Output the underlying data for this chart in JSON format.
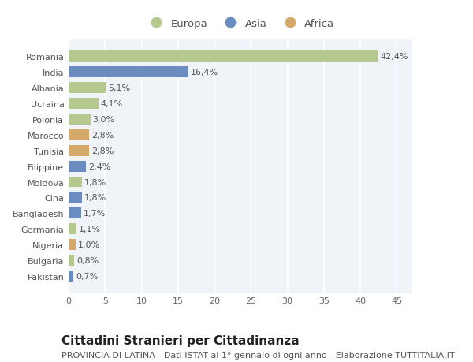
{
  "categories": [
    "Pakistan",
    "Bulgaria",
    "Nigeria",
    "Germania",
    "Bangladesh",
    "Cina",
    "Moldova",
    "Filippine",
    "Tunisia",
    "Marocco",
    "Polonia",
    "Ucraina",
    "Albania",
    "India",
    "Romania"
  ],
  "values": [
    0.7,
    0.8,
    1.0,
    1.1,
    1.7,
    1.8,
    1.8,
    2.4,
    2.8,
    2.8,
    3.0,
    4.1,
    5.1,
    16.4,
    42.4
  ],
  "labels": [
    "0,7%",
    "0,8%",
    "1,0%",
    "1,1%",
    "1,7%",
    "1,8%",
    "1,8%",
    "2,4%",
    "2,8%",
    "2,8%",
    "3,0%",
    "4,1%",
    "5,1%",
    "16,4%",
    "42,4%"
  ],
  "continents": [
    "Asia",
    "Europa",
    "Africa",
    "Europa",
    "Asia",
    "Asia",
    "Europa",
    "Asia",
    "Africa",
    "Africa",
    "Europa",
    "Europa",
    "Europa",
    "Asia",
    "Europa"
  ],
  "colors": {
    "Europa": "#b5c98e",
    "Asia": "#6b8cbf",
    "Africa": "#d4a96a"
  },
  "xlim": [
    0,
    47
  ],
  "xticks": [
    0,
    5,
    10,
    15,
    20,
    25,
    30,
    35,
    40,
    45
  ],
  "title": "Cittadini Stranieri per Cittadinanza",
  "subtitle": "PROVINCIA DI LATINA - Dati ISTAT al 1° gennaio di ogni anno - Elaborazione TUTTITALIA.IT",
  "bg_color": "#ffffff",
  "plot_bg_color": "#f0f4f8",
  "grid_color": "#ffffff",
  "bar_height": 0.7,
  "label_fontsize": 8,
  "tick_fontsize": 8,
  "title_fontsize": 11,
  "subtitle_fontsize": 8
}
